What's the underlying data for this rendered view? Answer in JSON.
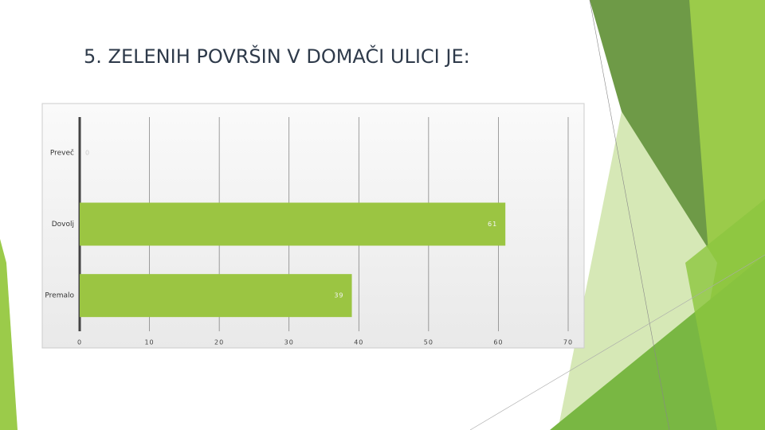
{
  "chart_data": {
    "type": "bar",
    "orientation": "horizontal",
    "title": "5. ZELENIH POVRŠIN V DOMAČI ULICI JE:",
    "categories": [
      "Preveč",
      "Dovolj",
      "Premalo"
    ],
    "values": [
      0,
      61,
      39
    ],
    "color": "#9bc542",
    "xlim": [
      0,
      70
    ],
    "xticks": [
      0,
      10,
      20,
      30,
      40,
      50,
      60,
      70
    ],
    "grid": true
  }
}
